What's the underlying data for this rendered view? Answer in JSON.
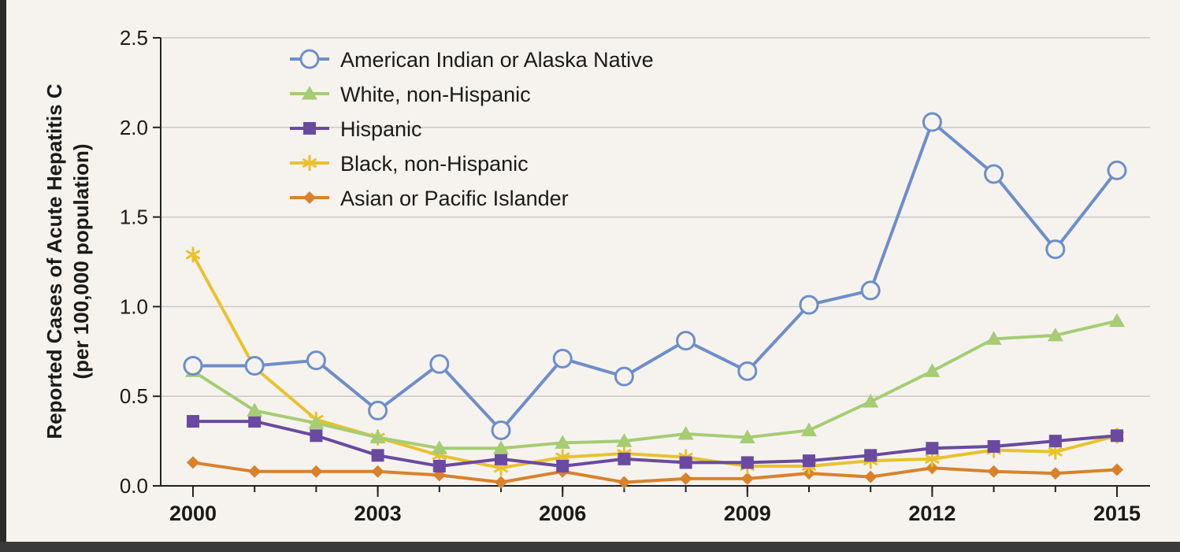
{
  "chart_data": {
    "type": "line",
    "ylabel_line1": "Reported Cases of Acute Hepatitis C",
    "ylabel_line2": "(per 100,000 population)",
    "xlabel": "",
    "title": "",
    "ylim": [
      0,
      2.5
    ],
    "xlim": [
      2000,
      2015
    ],
    "y_ticks": [
      "0.0",
      "0.5",
      "1.0",
      "1.5",
      "2.0",
      "2.5"
    ],
    "x_ticks": [
      "2000",
      "2003",
      "2006",
      "2009",
      "2012",
      "2015"
    ],
    "grid": "horizontal",
    "legend_position": "top-left",
    "x": [
      2000,
      2001,
      2002,
      2003,
      2004,
      2005,
      2006,
      2007,
      2008,
      2009,
      2010,
      2011,
      2012,
      2013,
      2014,
      2015
    ],
    "series": [
      {
        "name": "American Indian or Alaska Native",
        "color": "#6d8ec9",
        "marker": "open-circle",
        "values": [
          0.67,
          0.67,
          0.7,
          0.42,
          0.68,
          0.31,
          0.71,
          0.61,
          0.81,
          0.64,
          1.01,
          1.09,
          2.03,
          1.74,
          1.32,
          1.76
        ]
      },
      {
        "name": "White, non-Hispanic",
        "color": "#a6cc74",
        "marker": "triangle",
        "values": [
          0.64,
          0.42,
          0.35,
          0.27,
          0.21,
          0.21,
          0.24,
          0.25,
          0.29,
          0.27,
          0.31,
          0.47,
          0.64,
          0.82,
          0.84,
          0.92
        ]
      },
      {
        "name": "Hispanic",
        "color": "#6a4aa0",
        "marker": "square",
        "values": [
          0.36,
          0.36,
          0.28,
          0.17,
          0.11,
          0.15,
          0.11,
          0.15,
          0.13,
          0.13,
          0.14,
          0.17,
          0.21,
          0.22,
          0.25,
          0.28
        ]
      },
      {
        "name": "Black, non-Hispanic",
        "color": "#e8c230",
        "marker": "asterisk",
        "values": [
          1.29,
          0.66,
          0.37,
          0.27,
          0.17,
          0.1,
          0.16,
          0.18,
          0.16,
          0.11,
          0.11,
          0.14,
          0.15,
          0.2,
          0.19,
          0.28
        ]
      },
      {
        "name": "Asian or Pacific Islander",
        "color": "#d9822b",
        "marker": "diamond",
        "values": [
          0.13,
          0.08,
          0.08,
          0.08,
          0.06,
          0.02,
          0.08,
          0.02,
          0.04,
          0.04,
          0.07,
          0.05,
          0.1,
          0.08,
          0.07,
          0.09
        ]
      }
    ]
  }
}
